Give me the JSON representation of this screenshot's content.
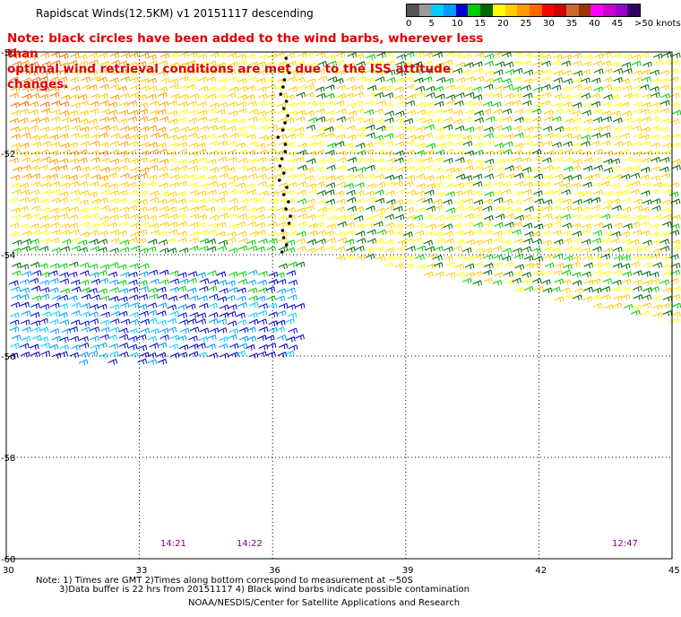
{
  "title": "Rapidscat Winds(12.5KM) v1  20151117  descending",
  "note": "Note: black circles have been added to the wind barbs, wherever less than\n      optimal wind retrieval conditions are met due to the ISS attitude changes.",
  "legend": {
    "colors": [
      "#555555",
      "#999999",
      "#00ccff",
      "#0099ff",
      "#0000cc",
      "#00cc00",
      "#006600",
      "#ffff00",
      "#ffcc00",
      "#ff9900",
      "#ff6600",
      "#ff0000",
      "#cc0000",
      "#cc6633",
      "#993300",
      "#ff00ff",
      "#cc00cc",
      "#9900cc",
      "#330066"
    ],
    "labels": [
      "0",
      "5",
      "10",
      "15",
      "20",
      "25",
      "30",
      "35",
      "40",
      "45",
      ">50 knots"
    ]
  },
  "axes": {
    "x_ticks": [
      "30",
      "33",
      "36",
      "39",
      "42",
      "45"
    ],
    "y_ticks": [
      "-50",
      "-52",
      "-54",
      "-56",
      "-58",
      "-60"
    ]
  },
  "times": [
    "14:21",
    "14:22",
    "12:47"
  ],
  "footer": {
    "line1": "Note: 1) Times are GMT 2)Times along bottom correspond to measurement at ~50S",
    "line2": "3)Data buffer is 22 hrs from 20151117 4) Black wind barbs indicate possible contamination",
    "line3": "NOAA/NESDIS/Center for Satellite Applications and Research"
  }
}
